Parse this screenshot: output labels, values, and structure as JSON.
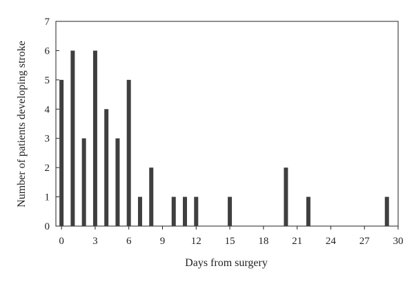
{
  "chart_data": {
    "type": "bar",
    "xlabel": "Days from surgery",
    "ylabel": "Number of patients developing stroke",
    "xlim": [
      -0.5,
      30
    ],
    "ylim": [
      0,
      7
    ],
    "x_ticks": [
      0,
      3,
      6,
      9,
      12,
      15,
      18,
      21,
      24,
      27,
      30
    ],
    "y_ticks": [
      0,
      1,
      2,
      3,
      4,
      5,
      6,
      7
    ],
    "grid": false,
    "bar_color": "#3f3f3f",
    "x": [
      0,
      1,
      2,
      3,
      4,
      5,
      6,
      7,
      8,
      10,
      11,
      12,
      15,
      20,
      22,
      29
    ],
    "values": [
      5,
      6,
      3,
      6,
      4,
      3,
      5,
      1,
      2,
      1,
      1,
      1,
      1,
      2,
      1,
      1
    ]
  }
}
